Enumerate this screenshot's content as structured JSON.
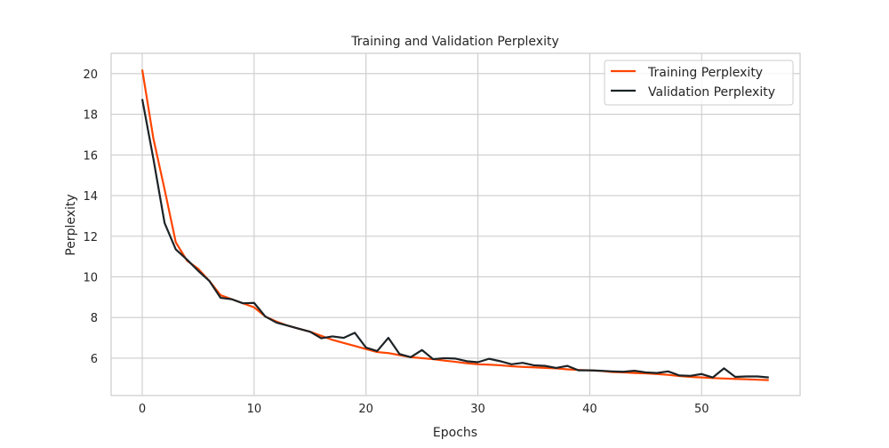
{
  "chart_data": {
    "type": "line",
    "title": "Training and Validation Perplexity",
    "xlabel": "Epochs",
    "ylabel": "Perplexity",
    "xlim": [
      -2.78,
      58.8
    ],
    "ylim": [
      4.16,
      21.0
    ],
    "xticks": [
      0,
      10,
      20,
      30,
      40,
      50
    ],
    "yticks": [
      6,
      8,
      10,
      12,
      14,
      16,
      18,
      20
    ],
    "grid": true,
    "legend_position": "top-right",
    "x": [
      0,
      1,
      2,
      3,
      4,
      5,
      6,
      7,
      8,
      9,
      10,
      11,
      12,
      13,
      14,
      15,
      16,
      17,
      18,
      19,
      20,
      21,
      22,
      23,
      24,
      25,
      26,
      27,
      28,
      29,
      30,
      31,
      32,
      33,
      34,
      35,
      36,
      37,
      38,
      39,
      40,
      41,
      42,
      43,
      44,
      45,
      46,
      47,
      48,
      49,
      50,
      51,
      52,
      53,
      54,
      55,
      56
    ],
    "series": [
      {
        "name": "Training Perplexity",
        "color": "#ff4500",
        "values": [
          20.2,
          16.8,
          14.3,
          11.7,
          10.8,
          10.4,
          9.8,
          9.1,
          8.9,
          8.7,
          8.5,
          8.05,
          7.8,
          7.6,
          7.45,
          7.3,
          7.1,
          6.9,
          6.75,
          6.6,
          6.45,
          6.3,
          6.25,
          6.15,
          6.05,
          6.0,
          5.95,
          5.88,
          5.82,
          5.75,
          5.7,
          5.68,
          5.65,
          5.6,
          5.57,
          5.55,
          5.52,
          5.5,
          5.45,
          5.42,
          5.4,
          5.37,
          5.32,
          5.3,
          5.27,
          5.25,
          5.22,
          5.18,
          5.12,
          5.08,
          5.05,
          5.02,
          5.0,
          4.98,
          4.96,
          4.94,
          4.92
        ]
      },
      {
        "name": "Validation Perplexity",
        "color": "#1c2326",
        "values": [
          18.75,
          15.8,
          12.65,
          11.35,
          10.85,
          10.3,
          9.8,
          8.97,
          8.9,
          8.7,
          8.72,
          8.05,
          7.75,
          7.6,
          7.45,
          7.3,
          6.98,
          7.07,
          7.0,
          7.25,
          6.52,
          6.35,
          7.0,
          6.2,
          6.05,
          6.4,
          5.95,
          6.0,
          5.98,
          5.85,
          5.8,
          5.97,
          5.85,
          5.7,
          5.77,
          5.65,
          5.62,
          5.52,
          5.62,
          5.4,
          5.4,
          5.38,
          5.35,
          5.33,
          5.38,
          5.3,
          5.27,
          5.35,
          5.15,
          5.13,
          5.22,
          5.05,
          5.5,
          5.08,
          5.1,
          5.1,
          5.05
        ]
      }
    ]
  }
}
